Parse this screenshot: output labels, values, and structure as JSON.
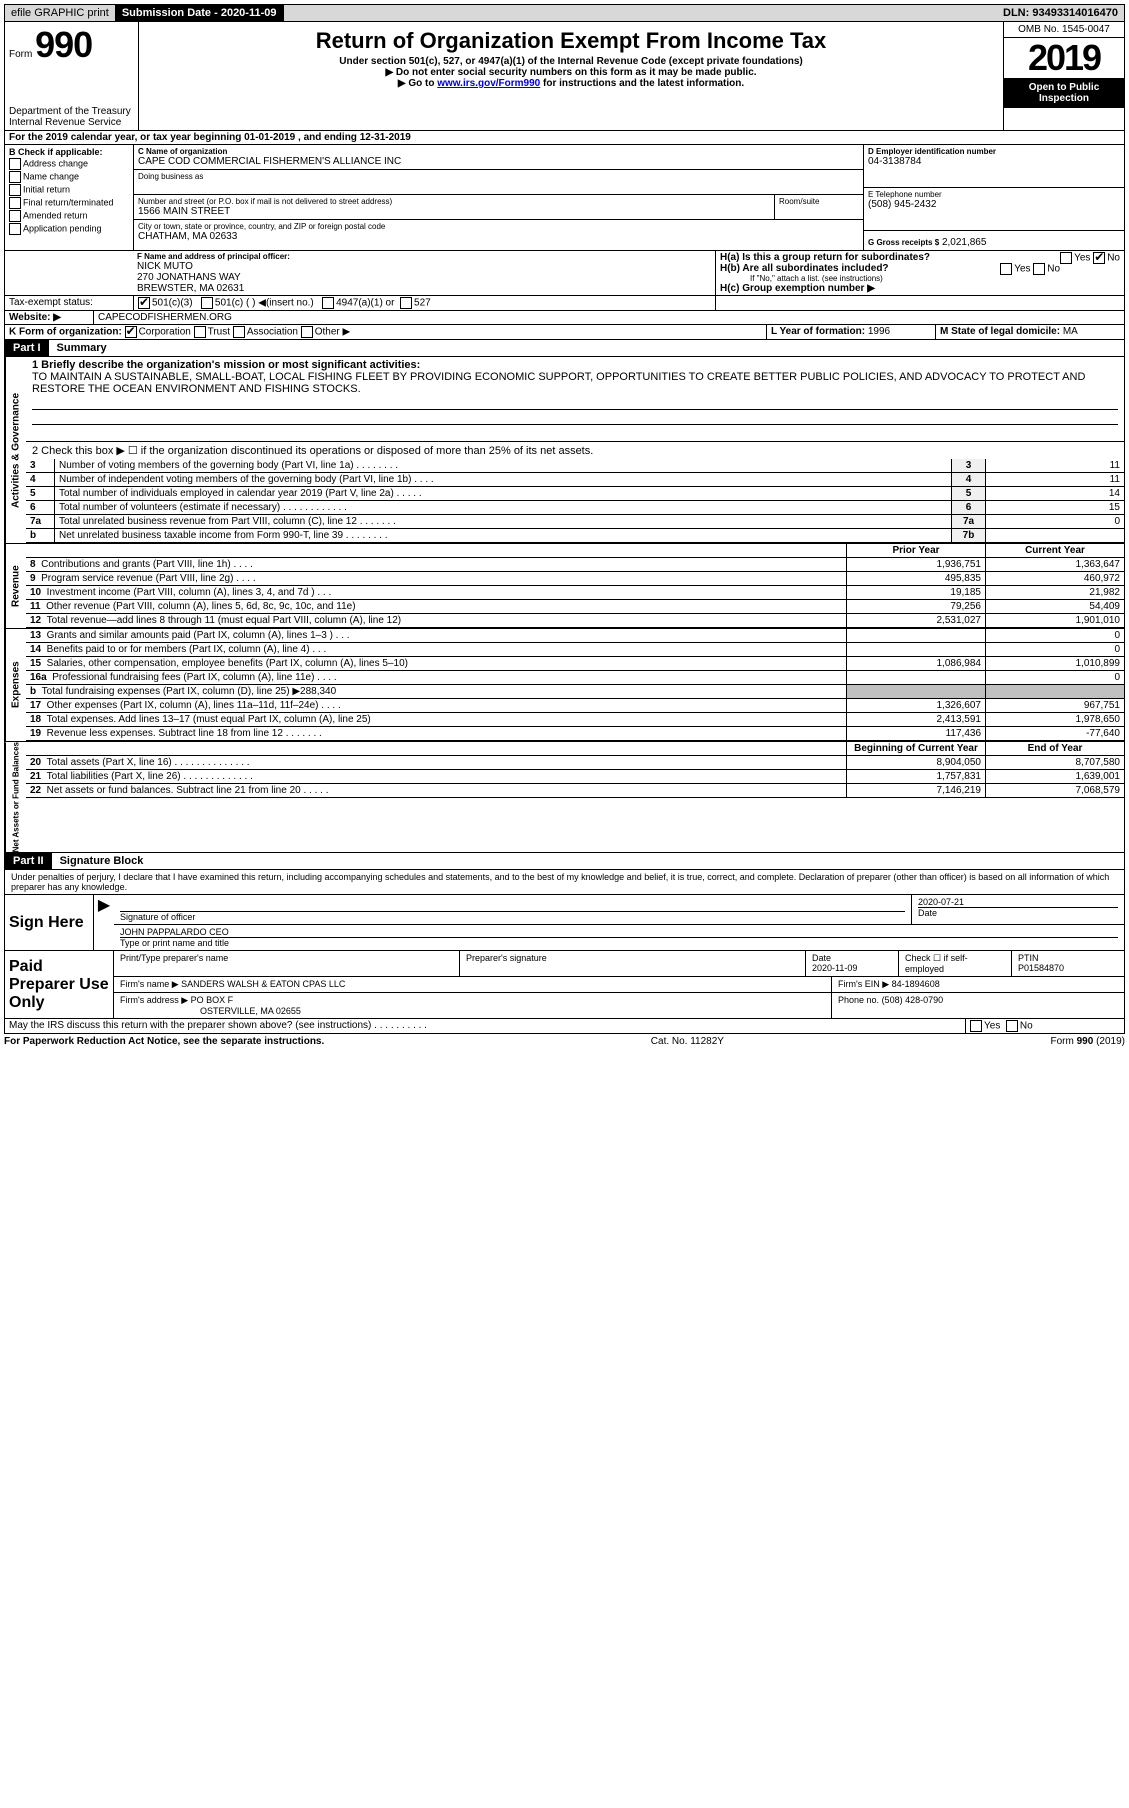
{
  "topbar": {
    "efile": "efile GRAPHIC print",
    "submission_label": "Submission Date - 2020-11-09",
    "dln": "DLN: 93493314016470"
  },
  "header": {
    "form_label": "Form",
    "form_num": "990",
    "dept": "Department of the Treasury",
    "irs": "Internal Revenue Service",
    "title": "Return of Organization Exempt From Income Tax",
    "sub1": "Under section 501(c), 527, or 4947(a)(1) of the Internal Revenue Code (except private foundations)",
    "sub2": "▶ Do not enter social security numbers on this form as it may be made public.",
    "sub3_pre": "▶ Go to ",
    "sub3_link": "www.irs.gov/Form990",
    "sub3_post": " for instructions and the latest information.",
    "omb": "OMB No. 1545-0047",
    "year": "2019",
    "open": "Open to Public Inspection"
  },
  "line_A": "For the 2019 calendar year, or tax year beginning 01-01-2019    , and ending 12-31-2019",
  "section_B": {
    "label": "B Check if applicable:",
    "addr": "Address change",
    "name": "Name change",
    "initial": "Initial return",
    "final": "Final return/terminated",
    "amended": "Amended return",
    "app": "Application pending"
  },
  "section_C": {
    "name_label": "C Name of organization",
    "name": "CAPE COD COMMERCIAL FISHERMEN'S ALLIANCE INC",
    "dba_label": "Doing business as",
    "street_label": "Number and street (or P.O. box if mail is not delivered to street address)",
    "street": "1566 MAIN STREET",
    "room_label": "Room/suite",
    "city_label": "City or town, state or province, country, and ZIP or foreign postal code",
    "city": "CHATHAM, MA  02633"
  },
  "section_D": {
    "label": "D Employer identification number",
    "ein": "04-3138784"
  },
  "section_E": {
    "label": "E Telephone number",
    "phone": "(508) 945-2432"
  },
  "section_G": {
    "label": "G Gross receipts $",
    "val": "2,021,865"
  },
  "section_F": {
    "label": "F  Name and address of principal officer:",
    "name": "NICK MUTO",
    "addr1": "270 JONATHANS WAY",
    "addr2": "BREWSTER, MA  02631"
  },
  "section_H": {
    "a": "H(a)  Is this a group return for subordinates?",
    "b": "H(b)  Are all subordinates included?",
    "b_note": "If \"No,\" attach a list. (see instructions)",
    "c": "H(c)  Group exemption number ▶",
    "yes": "Yes",
    "no": "No"
  },
  "tax_exempt": {
    "label": "Tax-exempt status:",
    "o1": "501(c)(3)",
    "o2": "501(c) (   ) ◀(insert no.)",
    "o3": "4947(a)(1) or",
    "o4": "527"
  },
  "website": {
    "label": "Website: ▶",
    "val": "CAPECODFISHERMEN.ORG"
  },
  "section_K": {
    "label": "K Form of organization:",
    "corp": "Corporation",
    "trust": "Trust",
    "assoc": "Association",
    "other": "Other ▶"
  },
  "section_L": {
    "label": "L Year of formation:",
    "val": "1996"
  },
  "section_M": {
    "label": "M State of legal domicile:",
    "val": "MA"
  },
  "part1": {
    "header": "Part I",
    "title": "Summary",
    "line1_label": "1  Briefly describe the organization's mission or most significant activities:",
    "line1_text": "TO MAINTAIN A SUSTAINABLE, SMALL-BOAT, LOCAL FISHING FLEET BY PROVIDING ECONOMIC SUPPORT, OPPORTUNITIES TO CREATE BETTER PUBLIC POLICIES, AND ADVOCACY TO PROTECT AND RESTORE THE OCEAN ENVIRONMENT AND FISHING STOCKS.",
    "line2": "2   Check this box ▶ ☐ if the organization discontinued its operations or disposed of more than 25% of its net assets.",
    "vert_ag": "Activities & Governance",
    "vert_rev": "Revenue",
    "vert_exp": "Expenses",
    "vert_net": "Net Assets or Fund Balances",
    "rows_ag": [
      {
        "n": "3",
        "label": "Number of voting members of the governing body (Part VI, line 1a)  .    .    .    .    .    .    .    .",
        "box": "3",
        "val": "11"
      },
      {
        "n": "4",
        "label": "Number of independent voting members of the governing body (Part VI, line 1b)  .    .    .    .",
        "box": "4",
        "val": "11"
      },
      {
        "n": "5",
        "label": "Total number of individuals employed in calendar year 2019 (Part V, line 2a)  .    .    .    .    .",
        "box": "5",
        "val": "14"
      },
      {
        "n": "6",
        "label": "Total number of volunteers (estimate if necessary)   .    .    .    .    .    .    .    .    .    .    .    .",
        "box": "6",
        "val": "15"
      },
      {
        "n": "7a",
        "label": "Total unrelated business revenue from Part VIII, column (C), line 12  .    .    .    .    .    .    .",
        "box": "7a",
        "val": "0"
      },
      {
        "n": "b",
        "label": "Net unrelated business taxable income from Form 990-T, line 39   .    .    .    .    .    .    .    .",
        "box": "7b",
        "val": ""
      }
    ],
    "col_prior": "Prior Year",
    "col_current": "Current Year",
    "rows_rev": [
      {
        "n": "8",
        "label": "Contributions and grants (Part VIII, line 1h)   .    .    .    .",
        "prior": "1,936,751",
        "cur": "1,363,647"
      },
      {
        "n": "9",
        "label": "Program service revenue (Part VIII, line 2g)   .    .    .    .",
        "prior": "495,835",
        "cur": "460,972"
      },
      {
        "n": "10",
        "label": "Investment income (Part VIII, column (A), lines 3, 4, and 7d )   .    .    .",
        "prior": "19,185",
        "cur": "21,982"
      },
      {
        "n": "11",
        "label": "Other revenue (Part VIII, column (A), lines 5, 6d, 8c, 9c, 10c, and 11e)",
        "prior": "79,256",
        "cur": "54,409"
      },
      {
        "n": "12",
        "label": "Total revenue—add lines 8 through 11 (must equal Part VIII, column (A), line 12)",
        "prior": "2,531,027",
        "cur": "1,901,010"
      }
    ],
    "rows_exp": [
      {
        "n": "13",
        "label": "Grants and similar amounts paid (Part IX, column (A), lines 1–3 )   .    .    .",
        "prior": "",
        "cur": "0"
      },
      {
        "n": "14",
        "label": "Benefits paid to or for members (Part IX, column (A), line 4)   .    .    .",
        "prior": "",
        "cur": "0"
      },
      {
        "n": "15",
        "label": "Salaries, other compensation, employee benefits (Part IX, column (A), lines 5–10)",
        "prior": "1,086,984",
        "cur": "1,010,899"
      },
      {
        "n": "16a",
        "label": "Professional fundraising fees (Part IX, column (A), line 11e)   .    .    .    .",
        "prior": "",
        "cur": "0"
      },
      {
        "n": "b",
        "label": "Total fundraising expenses (Part IX, column (D), line 25) ▶288,340",
        "prior": "shaded",
        "cur": "shaded"
      },
      {
        "n": "17",
        "label": "Other expenses (Part IX, column (A), lines 11a–11d, 11f–24e)   .    .    .    .",
        "prior": "1,326,607",
        "cur": "967,751"
      },
      {
        "n": "18",
        "label": "Total expenses. Add lines 13–17 (must equal Part IX, column (A), line 25)",
        "prior": "2,413,591",
        "cur": "1,978,650"
      },
      {
        "n": "19",
        "label": "Revenue less expenses. Subtract line 18 from line 12 .    .    .    .    .    .    .",
        "prior": "117,436",
        "cur": "-77,640"
      }
    ],
    "col_begin": "Beginning of Current Year",
    "col_end": "End of Year",
    "rows_net": [
      {
        "n": "20",
        "label": "Total assets (Part X, line 16)  .    .    .    .    .    .    .    .    .    .    .    .    .    .",
        "prior": "8,904,050",
        "cur": "8,707,580"
      },
      {
        "n": "21",
        "label": "Total liabilities (Part X, line 26)  .    .    .    .    .    .    .    .    .    .    .    .    .",
        "prior": "1,757,831",
        "cur": "1,639,001"
      },
      {
        "n": "22",
        "label": "Net assets or fund balances. Subtract line 21 from line 20  .    .    .    .    .",
        "prior": "7,146,219",
        "cur": "7,068,579"
      }
    ]
  },
  "part2": {
    "header": "Part II",
    "title": "Signature Block",
    "penalty": "Under penalties of perjury, I declare that I have examined this return, including accompanying schedules and statements, and to the best of my knowledge and belief, it is true, correct, and complete. Declaration of preparer (other than officer) is based on all information of which preparer has any knowledge.",
    "sign_here": "Sign Here",
    "sig_officer": "Signature of officer",
    "sig_date": "2020-07-21",
    "date_label": "Date",
    "officer_name": "JOHN PAPPALARDO CEO",
    "type_print": "Type or print name and title",
    "paid": "Paid Preparer Use Only",
    "prep_name_label": "Print/Type preparer's name",
    "prep_sig_label": "Preparer's signature",
    "prep_date_label": "Date",
    "prep_date": "2020-11-09",
    "self_emp": "Check ☐ if self-employed",
    "ptin_label": "PTIN",
    "ptin": "P01584870",
    "firm_name_label": "Firm's name    ▶",
    "firm_name": "SANDERS WALSH & EATON CPAS LLC",
    "firm_ein_label": "Firm's EIN ▶",
    "firm_ein": "84-1894608",
    "firm_addr_label": "Firm's address ▶",
    "firm_addr1": "PO BOX F",
    "firm_addr2": "OSTERVILLE, MA  02655",
    "phone_label": "Phone no.",
    "phone": "(508) 428-0790",
    "discuss": "May the IRS discuss this return with the preparer shown above? (see instructions)   .    .    .    .    .    .    .    .    .    .",
    "paperwork": "For Paperwork Reduction Act Notice, see the separate instructions.",
    "cat": "Cat. No. 11282Y",
    "form_foot": "Form 990 (2019)"
  }
}
